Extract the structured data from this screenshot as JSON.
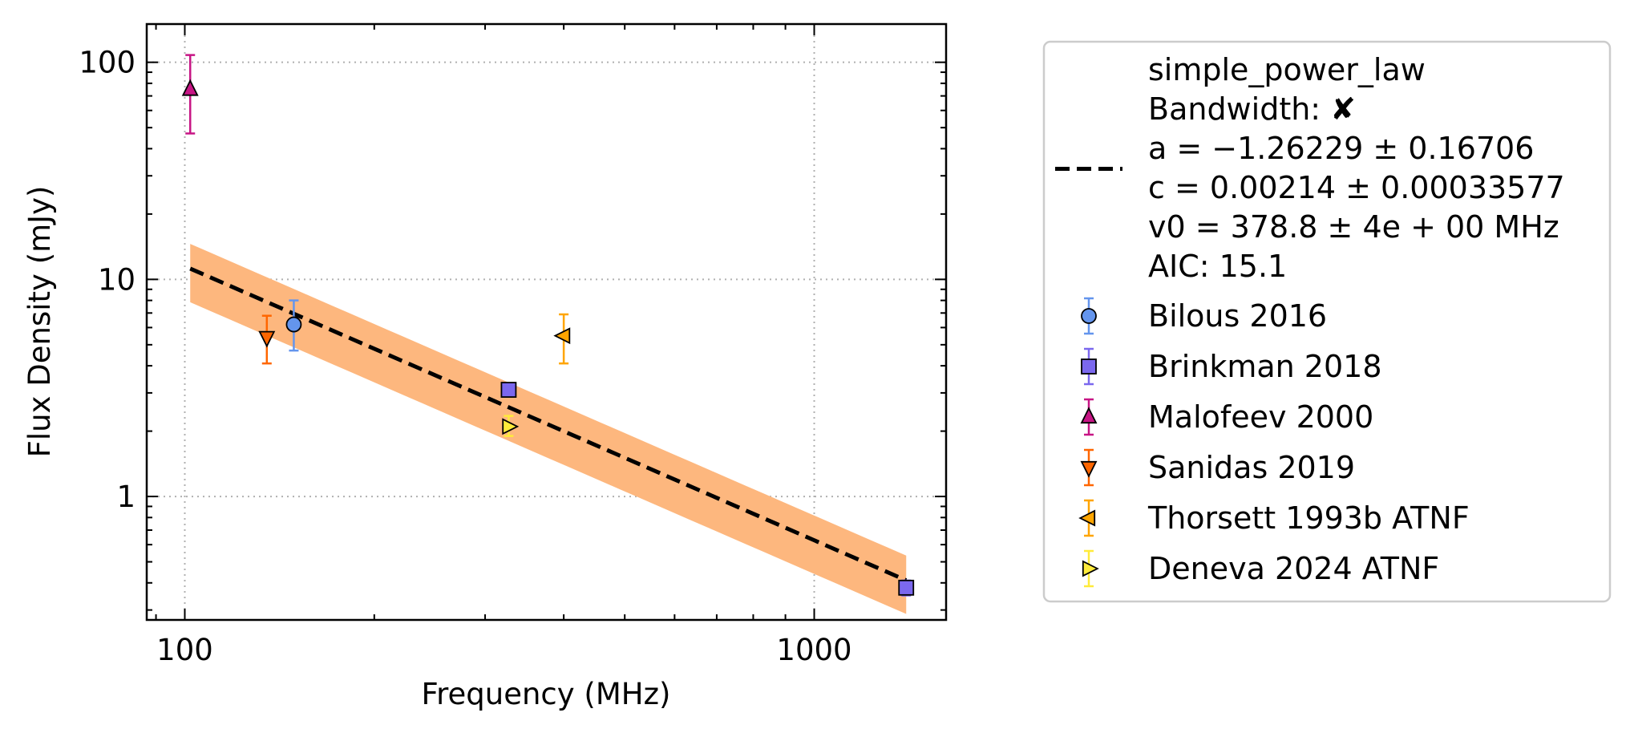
{
  "chart_data": {
    "type": "scatter",
    "xlabel": "Frequency (MHz)",
    "ylabel": "Flux Density (mJy)",
    "xscale": "log",
    "yscale": "log",
    "xlim": [
      87,
      1620
    ],
    "ylim": [
      0.27,
      150
    ],
    "grid": true,
    "legend_position": "outside-right",
    "x_tick_labels": [
      {
        "value": 100,
        "label": "100"
      },
      {
        "value": 1000,
        "label": "1000"
      }
    ],
    "y_tick_labels": [
      {
        "value": 1,
        "label": "1"
      },
      {
        "value": 10,
        "label": "10"
      },
      {
        "value": 100,
        "label": "100"
      }
    ],
    "fit": {
      "name": "simple_power_law",
      "legend_lines": [
        "simple_power_law",
        "Bandwidth: ✘",
        "a = −1.26229 ± 0.16706",
        "c = 0.00214 ± 0.00033577",
        "v0 = 378.8 ± 4e + 00 MHz",
        "AIC: 15.1"
      ],
      "a": -1.26229,
      "c": 0.00214,
      "v0": 378.8,
      "x_range": [
        102,
        1400
      ],
      "line_color": "#000000",
      "band_color": "#fdb77e",
      "band_low_factor": 0.7,
      "band_high_factor": 1.3
    },
    "series": [
      {
        "name": "Bilous 2016",
        "marker": "circle",
        "face": "#6495ed",
        "err_color": "#6495ed",
        "points": [
          {
            "x": 149,
            "y": 6.2,
            "ylo": 4.7,
            "yhi": 8.0
          }
        ]
      },
      {
        "name": "Brinkman 2018",
        "marker": "square",
        "face": "#7b68ee",
        "err_color": "#7b68ee",
        "points": [
          {
            "x": 327,
            "y": 3.1,
            "ylo": 2.95,
            "yhi": 3.25
          },
          {
            "x": 1400,
            "y": 0.38,
            "ylo": 0.35,
            "yhi": 0.41
          }
        ]
      },
      {
        "name": "Malofeev 2000",
        "marker": "triangle-up",
        "face": "#c71585",
        "err_color": "#c71585",
        "points": [
          {
            "x": 102,
            "y": 75,
            "ylo": 47,
            "yhi": 108
          }
        ]
      },
      {
        "name": "Sanidas 2019",
        "marker": "triangle-down",
        "face": "#ff6600",
        "err_color": "#ff6600",
        "points": [
          {
            "x": 135,
            "y": 5.4,
            "ylo": 4.1,
            "yhi": 6.8
          }
        ]
      },
      {
        "name": "Thorsett 1993b ATNF",
        "marker": "triangle-left",
        "face": "#ffa500",
        "err_color": "#ffa500",
        "points": [
          {
            "x": 400,
            "y": 5.5,
            "ylo": 4.1,
            "yhi": 6.9
          }
        ]
      },
      {
        "name": "Deneva 2024 ATNF",
        "marker": "triangle-right",
        "face": "#ffeb3b",
        "err_color": "#ffeb3b",
        "points": [
          {
            "x": 327,
            "y": 2.1,
            "ylo": 1.9,
            "yhi": 2.35
          }
        ]
      }
    ]
  }
}
